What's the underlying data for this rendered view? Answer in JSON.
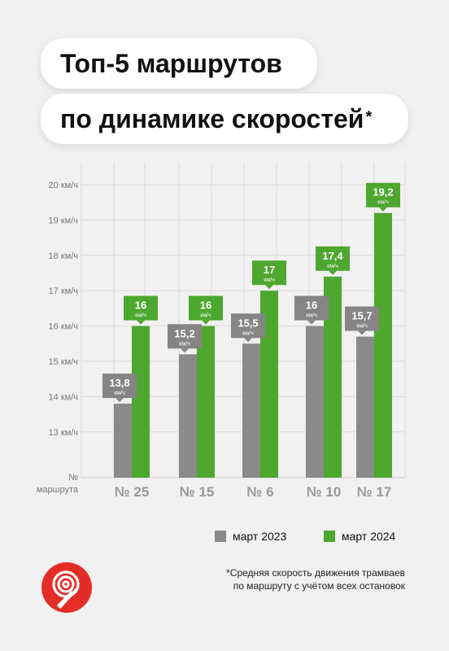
{
  "title": {
    "line1": "Топ-5 маршрутов",
    "line2": "по динамике скоростей",
    "mark": "*"
  },
  "colors": {
    "gray": "#8a8a8a",
    "green": "#4ea72e",
    "label_gray": "#858585",
    "logo_red": "#e52d27"
  },
  "logo_icon": "route-9-logo-icon",
  "chart_data": {
    "type": "bar",
    "categories": [
      "№ 25",
      "№ 15",
      "№ 6",
      "№ 10",
      "№ 17"
    ],
    "series": [
      {
        "name": "март 2023",
        "values": [
          13.8,
          15.2,
          15.5,
          16,
          15.7
        ],
        "labels": [
          "13,8",
          "15,2",
          "15,5",
          "16",
          "15,7"
        ]
      },
      {
        "name": "март 2024",
        "values": [
          16,
          16,
          17,
          17.4,
          19.2
        ],
        "labels": [
          "16",
          "16",
          "17",
          "17,4",
          "19,2"
        ]
      }
    ],
    "unit_label": "км/ч",
    "y_ticks": [
      "20 км/ч",
      "19 км/ч",
      "18 км/ч",
      "17 км/ч",
      "16 км/ч",
      "15 км/ч",
      "14 км/ч",
      "13 км/ч"
    ],
    "y_tick_values": [
      20,
      19,
      18,
      17,
      16,
      15,
      14,
      13
    ],
    "x_axis_title": [
      "№",
      "маршрута"
    ],
    "ylim": [
      12.2,
      20.2
    ],
    "grid": true,
    "legend": "bottom"
  },
  "legend": {
    "item1": "март 2023",
    "item2": "март 2024"
  },
  "footnote": {
    "line1": "*Средняя скорость движения трамваев",
    "line2": "по маршруту с учётом всех остановок"
  }
}
